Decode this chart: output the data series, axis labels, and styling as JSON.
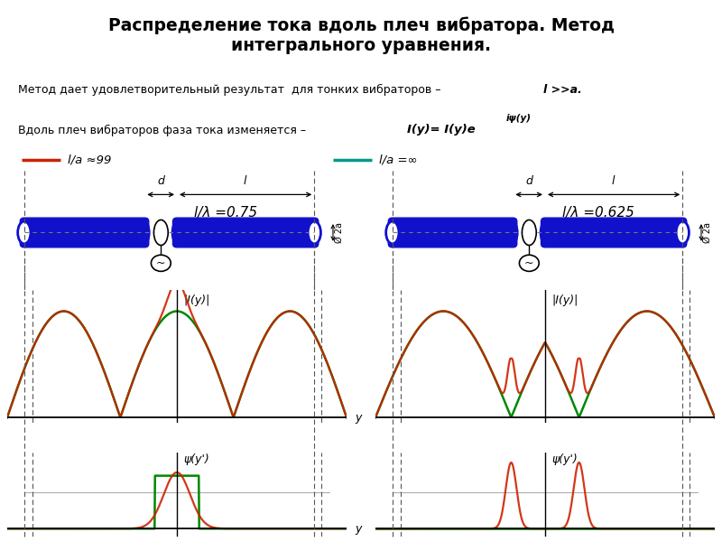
{
  "title": "Распределение тока вдоль плеч вибратора. Метод\nинтегрального уравнения.",
  "title_bg": "#b8d8e0",
  "yellow_bg": "#ffff00",
  "legend_left_label": "l/a ≈99",
  "legend_right_label": "l/a =∞",
  "label_left": "l/λ =0.75",
  "label_right": "l/λ =0.625",
  "left_current_label": "|I(y)|",
  "right_current_label": "|I(y)|",
  "left_phase_label": "ψ(y')",
  "right_phase_label": "ψ(y')",
  "color_red": "#cc2200",
  "color_green": "#008800",
  "color_teal": "#009988",
  "color_blue": "#1111cc",
  "axis_color": "#000000",
  "dashed_color": "#555555",
  "background": "#ffffff"
}
